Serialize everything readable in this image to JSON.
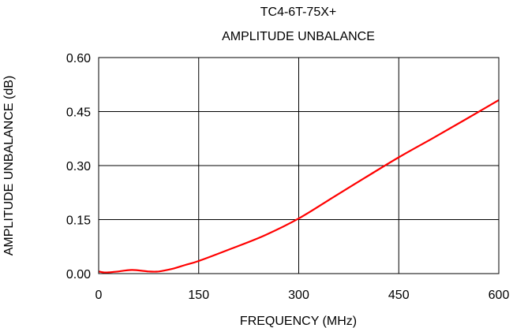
{
  "chart_data": {
    "type": "line",
    "title": "TC4-6T-75X+",
    "subtitle": "AMPLITUDE UNBALANCE",
    "xlabel": "FREQUENCY (MHz)",
    "ylabel": "AMPLITUDE UNBALANCE (dB)",
    "xlim": [
      0,
      600
    ],
    "ylim": [
      0,
      0.6
    ],
    "xticks": [
      "0",
      "150",
      "300",
      "450",
      "600"
    ],
    "yticks": [
      "0.00",
      "0.15",
      "0.30",
      "0.45",
      "0.60"
    ],
    "grid": true,
    "series": [
      {
        "color": "#ff0000",
        "x": [
          0,
          10,
          25,
          50,
          75,
          90,
          110,
          130,
          150,
          200,
          250,
          300,
          350,
          400,
          450,
          500,
          550,
          600
        ],
        "y": [
          0.006,
          0.003,
          0.005,
          0.01,
          0.006,
          0.006,
          0.013,
          0.024,
          0.035,
          0.07,
          0.107,
          0.153,
          0.21,
          0.267,
          0.323,
          0.375,
          0.428,
          0.482
        ]
      }
    ]
  }
}
